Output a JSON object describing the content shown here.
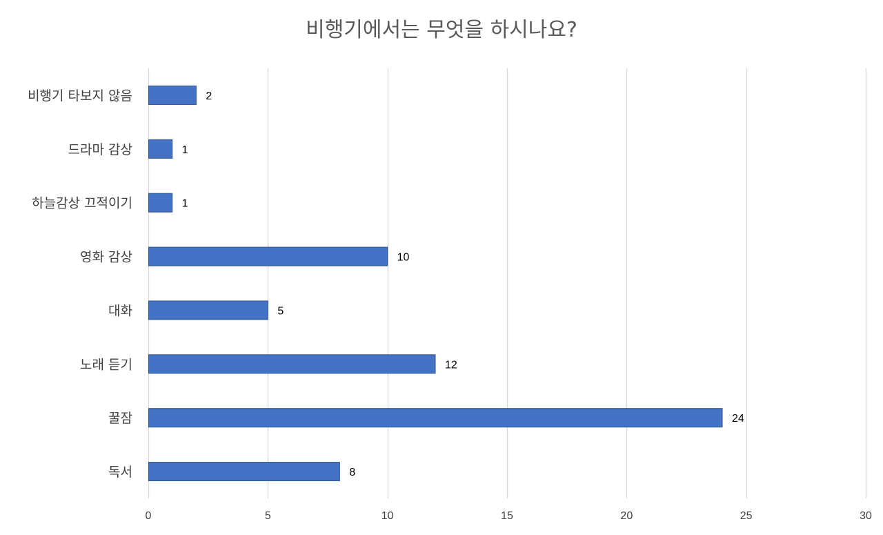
{
  "chart_data": {
    "type": "bar",
    "orientation": "horizontal",
    "title": "비행기에서는 무엇을 하시나요?",
    "xlabel": "",
    "ylabel": "",
    "categories": [
      "비행기 타보지 않음",
      "드라마 감상",
      "하늘감상 끄적이기",
      "영화 감상",
      "대화",
      "노래 듣기",
      "꿀잠",
      "독서"
    ],
    "values": [
      2,
      1,
      1,
      10,
      5,
      12,
      24,
      8
    ],
    "xlim": [
      0,
      30
    ],
    "x_ticks": [
      0,
      5,
      10,
      15,
      20,
      25,
      30
    ],
    "grid": "vertical",
    "legend": "none",
    "data_labels": true,
    "colors": {
      "bar_fill": "#4472C4",
      "bar_stroke": "#2F528F",
      "gridline": "#D9D9D9"
    }
  }
}
